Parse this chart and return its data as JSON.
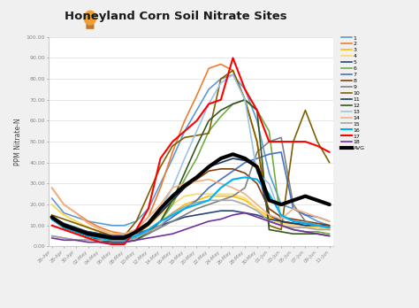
{
  "title": "Honeyland Corn Soil Nitrate Sites",
  "ylabel": "PPM Nitrate-N",
  "ylim": [
    0,
    100
  ],
  "yticks": [
    0,
    10,
    20,
    30,
    40,
    50,
    60,
    70,
    80,
    90,
    100
  ],
  "ytick_labels": [
    "0.00",
    "10.00",
    "20.00",
    "30.00",
    "40.00",
    "50.00",
    "60.00",
    "70.00",
    "80.00",
    "90.00",
    "100.00"
  ],
  "x_labels": [
    "26-Apr",
    "28-Apr",
    "30-Apr",
    "02-May",
    "04-May",
    "06-May",
    "08-May",
    "10-May",
    "12-May",
    "14-May",
    "16-May",
    "18-May",
    "20-May",
    "22-May",
    "24-May",
    "26-May",
    "28-May",
    "30-May",
    "01-Jun",
    "03-Jun",
    "05-Jun",
    "07-Jun",
    "09-Jun",
    "11-Jun"
  ],
  "background_color": "#f0f0f0",
  "plot_bg": "#ffffff",
  "series": [
    {
      "label": "1",
      "color": "#5b9bd5",
      "lw": 1.2,
      "y": [
        23,
        16,
        14,
        12,
        11,
        10,
        10,
        12,
        18,
        30,
        42,
        55,
        65,
        75,
        80,
        82,
        75,
        60,
        35,
        20,
        18,
        15,
        12,
        10
      ]
    },
    {
      "label": "2",
      "color": "#ed7d31",
      "lw": 1.2,
      "y": [
        28,
        20,
        16,
        12,
        9,
        7,
        6,
        8,
        14,
        28,
        45,
        60,
        72,
        85,
        87,
        84,
        70,
        50,
        15,
        12,
        10,
        9,
        9,
        8
      ]
    },
    {
      "label": "3",
      "color": "#ffc000",
      "lw": 1.2,
      "y": [
        20,
        15,
        12,
        9,
        7,
        5,
        4,
        5,
        8,
        12,
        16,
        20,
        22,
        24,
        24,
        24,
        22,
        18,
        14,
        12,
        11,
        10,
        9,
        8
      ]
    },
    {
      "label": "4",
      "color": "#ffd966",
      "lw": 1.2,
      "y": [
        20,
        15,
        12,
        9,
        7,
        5,
        4,
        6,
        10,
        15,
        20,
        24,
        25,
        25,
        25,
        25,
        23,
        18,
        13,
        11,
        10,
        9,
        9,
        8
      ]
    },
    {
      "label": "5",
      "color": "#264478",
      "lw": 1.2,
      "y": [
        13,
        10,
        8,
        7,
        6,
        5,
        5,
        6,
        8,
        10,
        12,
        14,
        15,
        16,
        17,
        17,
        16,
        15,
        13,
        12,
        11,
        11,
        10,
        10
      ]
    },
    {
      "label": "6",
      "color": "#70ad47",
      "lw": 1.2,
      "y": [
        14,
        10,
        8,
        5,
        3,
        2,
        2,
        3,
        6,
        12,
        20,
        32,
        42,
        55,
        62,
        68,
        70,
        65,
        55,
        10,
        8,
        7,
        7,
        6
      ]
    },
    {
      "label": "7",
      "color": "#4472c4",
      "lw": 1.2,
      "y": [
        13,
        9,
        7,
        5,
        4,
        4,
        4,
        5,
        7,
        10,
        14,
        18,
        22,
        28,
        32,
        36,
        40,
        42,
        44,
        45,
        18,
        15,
        14,
        12
      ]
    },
    {
      "label": "8",
      "color": "#843c0c",
      "lw": 1.2,
      "y": [
        13,
        9,
        7,
        5,
        4,
        3,
        4,
        6,
        10,
        16,
        22,
        28,
        32,
        36,
        37,
        37,
        35,
        30,
        18,
        14,
        13,
        12,
        11,
        10
      ]
    },
    {
      "label": "9",
      "color": "#808080",
      "lw": 1.2,
      "y": [
        5,
        4,
        3,
        3,
        3,
        3,
        3,
        4,
        6,
        9,
        12,
        15,
        18,
        20,
        22,
        24,
        28,
        45,
        50,
        52,
        20,
        12,
        10,
        9
      ]
    },
    {
      "label": "10",
      "color": "#7f6000",
      "lw": 1.2,
      "y": [
        15,
        13,
        11,
        9,
        7,
        5,
        5,
        12,
        25,
        38,
        48,
        52,
        53,
        54,
        80,
        84,
        70,
        50,
        10,
        8,
        50,
        65,
        50,
        40
      ]
    },
    {
      "label": "11",
      "color": "#203864",
      "lw": 1.2,
      "y": [
        14,
        11,
        9,
        7,
        6,
        5,
        5,
        7,
        11,
        16,
        22,
        28,
        33,
        38,
        40,
        42,
        41,
        38,
        15,
        12,
        11,
        10,
        10,
        9
      ]
    },
    {
      "label": "12",
      "color": "#375623",
      "lw": 1.2,
      "y": [
        14,
        10,
        7,
        5,
        3,
        2,
        2,
        3,
        7,
        12,
        22,
        35,
        48,
        60,
        65,
        68,
        70,
        65,
        8,
        7,
        6,
        6,
        6,
        5
      ]
    },
    {
      "label": "13",
      "color": "#9dc3e6",
      "lw": 1.2,
      "y": [
        14,
        10,
        8,
        5,
        4,
        3,
        3,
        6,
        11,
        18,
        28,
        42,
        55,
        68,
        78,
        82,
        70,
        35,
        30,
        14,
        12,
        11,
        10,
        9
      ]
    },
    {
      "label": "14",
      "color": "#f4b183",
      "lw": 1.2,
      "y": [
        28,
        20,
        16,
        11,
        8,
        6,
        6,
        8,
        14,
        20,
        28,
        30,
        31,
        32,
        30,
        28,
        25,
        20,
        15,
        13,
        18,
        16,
        14,
        12
      ]
    },
    {
      "label": "15",
      "color": "#a5a5a5",
      "lw": 1.2,
      "y": [
        5,
        4,
        3,
        3,
        3,
        3,
        3,
        4,
        7,
        10,
        16,
        19,
        21,
        22,
        22,
        22,
        20,
        17,
        12,
        10,
        9,
        9,
        8,
        8
      ]
    },
    {
      "label": "16",
      "color": "#00b0f0",
      "lw": 1.5,
      "y": [
        13,
        9,
        7,
        5,
        4,
        3,
        3,
        5,
        8,
        12,
        15,
        18,
        20,
        22,
        28,
        32,
        33,
        32,
        25,
        15,
        12,
        11,
        10,
        9
      ]
    },
    {
      "label": "17",
      "color": "#ff0000",
      "lw": 1.5,
      "y": [
        10,
        8,
        6,
        4,
        2,
        1,
        1,
        8,
        18,
        42,
        50,
        55,
        60,
        68,
        70,
        90,
        75,
        65,
        50,
        50,
        50,
        50,
        48,
        45
      ]
    },
    {
      "label": "18",
      "color": "#7030a0",
      "lw": 1.2,
      "y": [
        4,
        3,
        3,
        2,
        2,
        2,
        2,
        3,
        4,
        5,
        6,
        8,
        10,
        12,
        13,
        15,
        16,
        14,
        12,
        10,
        8,
        7,
        6,
        5
      ]
    },
    {
      "label": "AVG",
      "color": "#000000",
      "lw": 3.0,
      "y": [
        14,
        10,
        8,
        6,
        5,
        4,
        4,
        7,
        11,
        18,
        24,
        29,
        33,
        38,
        42,
        44,
        42,
        38,
        22,
        20,
        22,
        24,
        22,
        20
      ]
    }
  ]
}
